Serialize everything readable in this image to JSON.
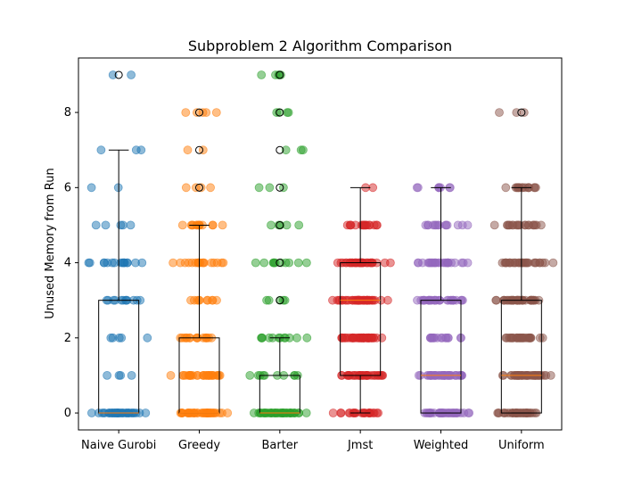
{
  "chart_data": {
    "type": "box",
    "title": "Subproblem 2 Algorithm Comparison",
    "xlabel": "",
    "ylabel": "Unused Memory from Run",
    "ylim": [
      -0.45,
      9.45
    ],
    "yticks": [
      0,
      2,
      4,
      6,
      8
    ],
    "categories": [
      "Naive Gurobi",
      "Greedy",
      "Barter",
      "Jmst",
      "Weighted",
      "Uniform"
    ],
    "colors": [
      "#1f77b4",
      "#ff7f0e",
      "#2ca02c",
      "#d62728",
      "#9467bd",
      "#8c564b"
    ],
    "boxes": [
      {
        "q1": 0,
        "median": 0,
        "q3": 3,
        "whisker_low": 0,
        "whisker_high": 7,
        "outliers": [
          9
        ]
      },
      {
        "q1": 0,
        "median": 0,
        "q3": 2,
        "whisker_low": 0,
        "whisker_high": 5,
        "outliers": [
          6,
          7,
          8
        ]
      },
      {
        "q1": 0,
        "median": 0,
        "q3": 1,
        "whisker_low": 0,
        "whisker_high": 2,
        "outliers": [
          3,
          4,
          5,
          6,
          7,
          8,
          9
        ]
      },
      {
        "q1": 1,
        "median": 3,
        "q3": 4,
        "whisker_low": 0,
        "whisker_high": 6,
        "outliers": []
      },
      {
        "q1": 0,
        "median": 1,
        "q3": 3,
        "whisker_low": 0,
        "whisker_high": 6,
        "outliers": []
      },
      {
        "q1": 0,
        "median": 1,
        "q3": 3,
        "whisker_low": 0,
        "whisker_high": 6,
        "outliers": [
          8
        ]
      }
    ],
    "points": [
      {
        "0": 40,
        "1": 4,
        "2": 5,
        "3": 12,
        "4": 16,
        "5": 5,
        "6": 2,
        "7": 3,
        "9": 2
      },
      {
        "0": 45,
        "1": 30,
        "2": 16,
        "3": 10,
        "4": 18,
        "5": 14,
        "6": 4,
        "7": 2,
        "8": 5
      },
      {
        "0": 50,
        "1": 10,
        "2": 12,
        "3": 5,
        "4": 11,
        "5": 5,
        "6": 3,
        "7": 3,
        "8": 4,
        "9": 5
      },
      {
        "0": 25,
        "1": 35,
        "2": 40,
        "3": 45,
        "4": 38,
        "5": 18,
        "6": 2
      },
      {
        "0": 40,
        "1": 40,
        "2": 16,
        "3": 30,
        "4": 26,
        "5": 14,
        "6": 8
      },
      {
        "0": 40,
        "1": 42,
        "2": 26,
        "3": 40,
        "4": 30,
        "5": 20,
        "6": 16,
        "8": 3
      }
    ],
    "grid": false,
    "legend": "none"
  }
}
